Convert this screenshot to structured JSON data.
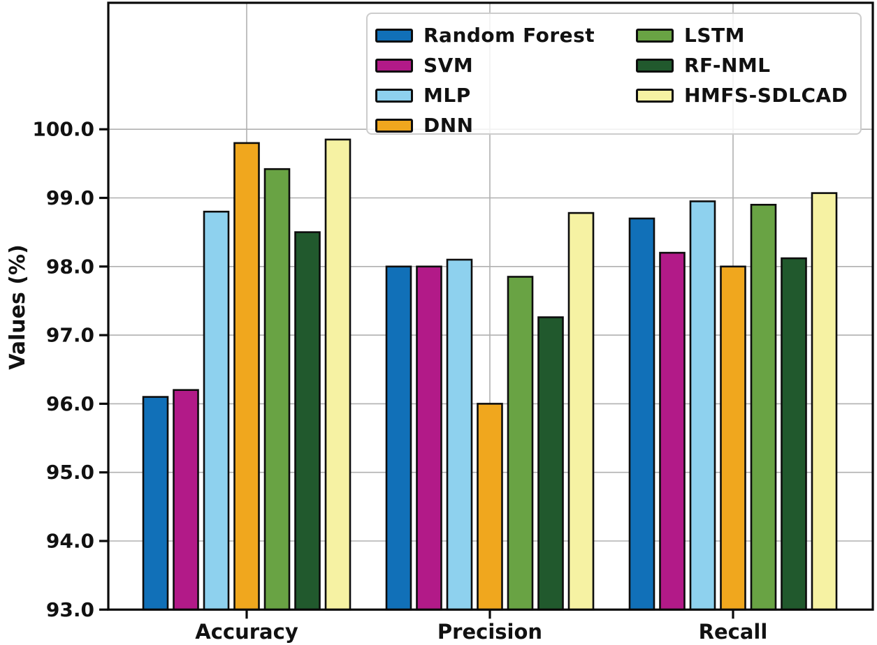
{
  "chart_data": {
    "type": "bar",
    "title": "",
    "xlabel": "",
    "ylabel": "Values (%)",
    "categories": [
      "Accuracy",
      "Precision",
      "Recall"
    ],
    "series": [
      {
        "name": "Random Forest",
        "color": "#1170b8",
        "values": [
          96.1,
          98.0,
          98.7
        ]
      },
      {
        "name": "SVM",
        "color": "#b21a88",
        "values": [
          96.2,
          98.0,
          98.2
        ]
      },
      {
        "name": "MLP",
        "color": "#8ed1ee",
        "values": [
          98.8,
          98.1,
          98.95
        ]
      },
      {
        "name": "DNN",
        "color": "#f0a71e",
        "values": [
          99.8,
          96.0,
          98.0
        ]
      },
      {
        "name": "LSTM",
        "color": "#69a344",
        "values": [
          99.42,
          97.85,
          98.9
        ]
      },
      {
        "name": "RF-NML",
        "color": "#21592d",
        "values": [
          98.5,
          97.26,
          98.12
        ]
      },
      {
        "name": "HMFS-SDLCAD",
        "color": "#f6f2a3",
        "values": [
          99.85,
          98.78,
          99.07
        ]
      }
    ],
    "ylim": [
      93.0,
      101.84
    ],
    "yticks": [
      93,
      94,
      95,
      96,
      97,
      98,
      99,
      100
    ],
    "ytick_labels": [
      "93.0",
      "94.0",
      "95.0",
      "96.0",
      "97.0",
      "98.0",
      "99.0",
      "100.0"
    ],
    "grid": true,
    "grid_color": "#b0b0b0",
    "bar_edge_color": "#0d0d0d",
    "legend_position": "upper-center-inside",
    "legend_columns": [
      [
        0,
        1,
        2,
        3
      ],
      [
        4,
        5,
        6
      ]
    ]
  }
}
